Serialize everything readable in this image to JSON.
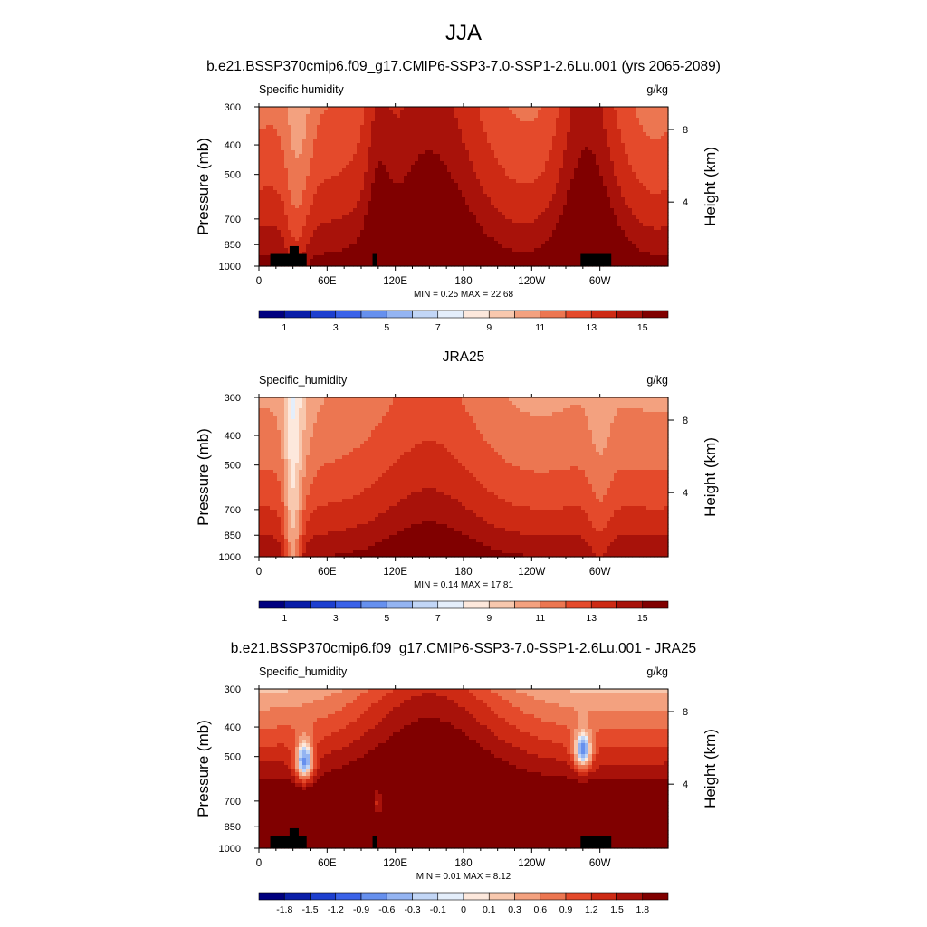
{
  "figure": {
    "title": "JJA",
    "panel_titles": [
      "b.e21.BSSP370cmip6.f09_g17.CMIP6-SSP3-7.0-SSP1-2.6Lu.001 (yrs 2065-2089)",
      "JRA25",
      "b.e21.BSSP370cmip6.f09_g17.CMIP6-SSP3-7.0-SSP1-2.6Lu.001 - JRA25"
    ]
  },
  "palettes": {
    "seq": [
      "#00007f",
      "#0a1ea8",
      "#1d3fcf",
      "#3a62e8",
      "#6690ee",
      "#94b4f2",
      "#c2d6f6",
      "#e4eefb",
      "#fde8dc",
      "#f8c8ae",
      "#f3a17f",
      "#ec7651",
      "#e44a2b",
      "#cd2a14",
      "#a8120a",
      "#800000"
    ],
    "diff": [
      "#00007f",
      "#0a1ea8",
      "#1d3fcf",
      "#3a62e8",
      "#6690ee",
      "#94b4f2",
      "#c2d6f6",
      "#e4eefb",
      "#fde8dc",
      "#f8c8ae",
      "#f3a17f",
      "#ec7651",
      "#e44a2b",
      "#cd2a14",
      "#a8120a",
      "#800000"
    ]
  },
  "chart_data": [
    {
      "type": "heatmap",
      "title": "b.e21.BSSP370cmip6.f09_g17.CMIP6-SSP3-7.0-SSP1-2.6Lu.001 (yrs 2065-2089)",
      "left_label": "Specific humidity",
      "units": "g/kg",
      "ylabel": "Pressure (mb)",
      "ylabel_right": "Height (km)",
      "xlim": [
        0,
        360
      ],
      "ylim": [
        1000,
        300
      ],
      "y_scale": "log",
      "x_ticks": [
        "0",
        "60E",
        "120E",
        "180",
        "120W",
        "60W"
      ],
      "y_ticks": [
        "300",
        "400",
        "500",
        "700",
        "850",
        "1000"
      ],
      "right_ticks": [
        "8",
        "4"
      ],
      "stats": "MIN =   0.25  MAX =  22.68",
      "levels": [
        0,
        1,
        2,
        3,
        4,
        5,
        6,
        7,
        8,
        9,
        10,
        11,
        12,
        13,
        14,
        15
      ],
      "colorbar_labels": [
        "1",
        "3",
        "5",
        "7",
        "9",
        "11",
        "13",
        "15"
      ],
      "colorbar_label_at": [
        1,
        3,
        5,
        7,
        9,
        11,
        13,
        15
      ],
      "palette": "seq",
      "field": "model",
      "terrain": [
        {
          "lon": [
            10,
            42
          ],
          "p_top": 912
        },
        {
          "lon": [
            27,
            35
          ],
          "p_top": 860
        },
        {
          "lon": [
            100,
            104
          ],
          "p_top": 912
        },
        {
          "lon": [
            283,
            310
          ],
          "p_top": 912
        }
      ]
    },
    {
      "type": "heatmap",
      "title": "JRA25",
      "left_label": "Specific_humidity",
      "units": "g/kg",
      "ylabel": "Pressure (mb)",
      "ylabel_right": "Height (km)",
      "xlim": [
        0,
        360
      ],
      "ylim": [
        1000,
        300
      ],
      "y_scale": "log",
      "x_ticks": [
        "0",
        "60E",
        "120E",
        "180",
        "120W",
        "60W"
      ],
      "y_ticks": [
        "300",
        "400",
        "500",
        "700",
        "850",
        "1000"
      ],
      "right_ticks": [
        "8",
        "4"
      ],
      "stats": "MIN =   0.14  MAX =  17.81",
      "levels": [
        0,
        1,
        2,
        3,
        4,
        5,
        6,
        7,
        8,
        9,
        10,
        11,
        12,
        13,
        14,
        15
      ],
      "colorbar_labels": [
        "1",
        "3",
        "5",
        "7",
        "9",
        "11",
        "13",
        "15"
      ],
      "colorbar_label_at": [
        1,
        3,
        5,
        7,
        9,
        11,
        13,
        15
      ],
      "palette": "seq",
      "field": "obs",
      "terrain": []
    },
    {
      "type": "heatmap",
      "title": "b.e21.BSSP370cmip6.f09_g17.CMIP6-SSP3-7.0-SSP1-2.6Lu.001 - JRA25",
      "left_label": "Specific_humidity",
      "units": "g/kg",
      "ylabel": "Pressure (mb)",
      "ylabel_right": "Height (km)",
      "xlim": [
        0,
        360
      ],
      "ylim": [
        1000,
        300
      ],
      "y_scale": "log",
      "x_ticks": [
        "0",
        "60E",
        "120E",
        "180",
        "120W",
        "60W"
      ],
      "y_ticks": [
        "300",
        "400",
        "500",
        "700",
        "850",
        "1000"
      ],
      "right_ticks": [
        "8",
        "4"
      ],
      "stats": "MIN =   0.01  MAX =   8.12",
      "levels": [
        -2.1,
        -1.8,
        -1.5,
        -1.2,
        -0.9,
        -0.6,
        -0.3,
        -0.1,
        0,
        0.1,
        0.3,
        0.6,
        0.9,
        1.2,
        1.5,
        1.8
      ],
      "colorbar_labels": [
        "-1.8",
        "-1.5",
        "-1.2",
        "-0.9",
        "-0.6",
        "-0.3",
        "-0.1",
        "0",
        "0.1",
        "0.3",
        "0.6",
        "0.9",
        "1.2",
        "1.5",
        "1.8"
      ],
      "colorbar_label_at": [
        1,
        2,
        3,
        4,
        5,
        6,
        7,
        8,
        9,
        10,
        11,
        12,
        13,
        14,
        15
      ],
      "palette": "diff",
      "field": "diff",
      "terrain": [
        {
          "lon": [
            10,
            42
          ],
          "p_top": 912
        },
        {
          "lon": [
            27,
            35
          ],
          "p_top": 860
        },
        {
          "lon": [
            100,
            104
          ],
          "p_top": 912
        },
        {
          "lon": [
            283,
            310
          ],
          "p_top": 912
        }
      ]
    }
  ]
}
